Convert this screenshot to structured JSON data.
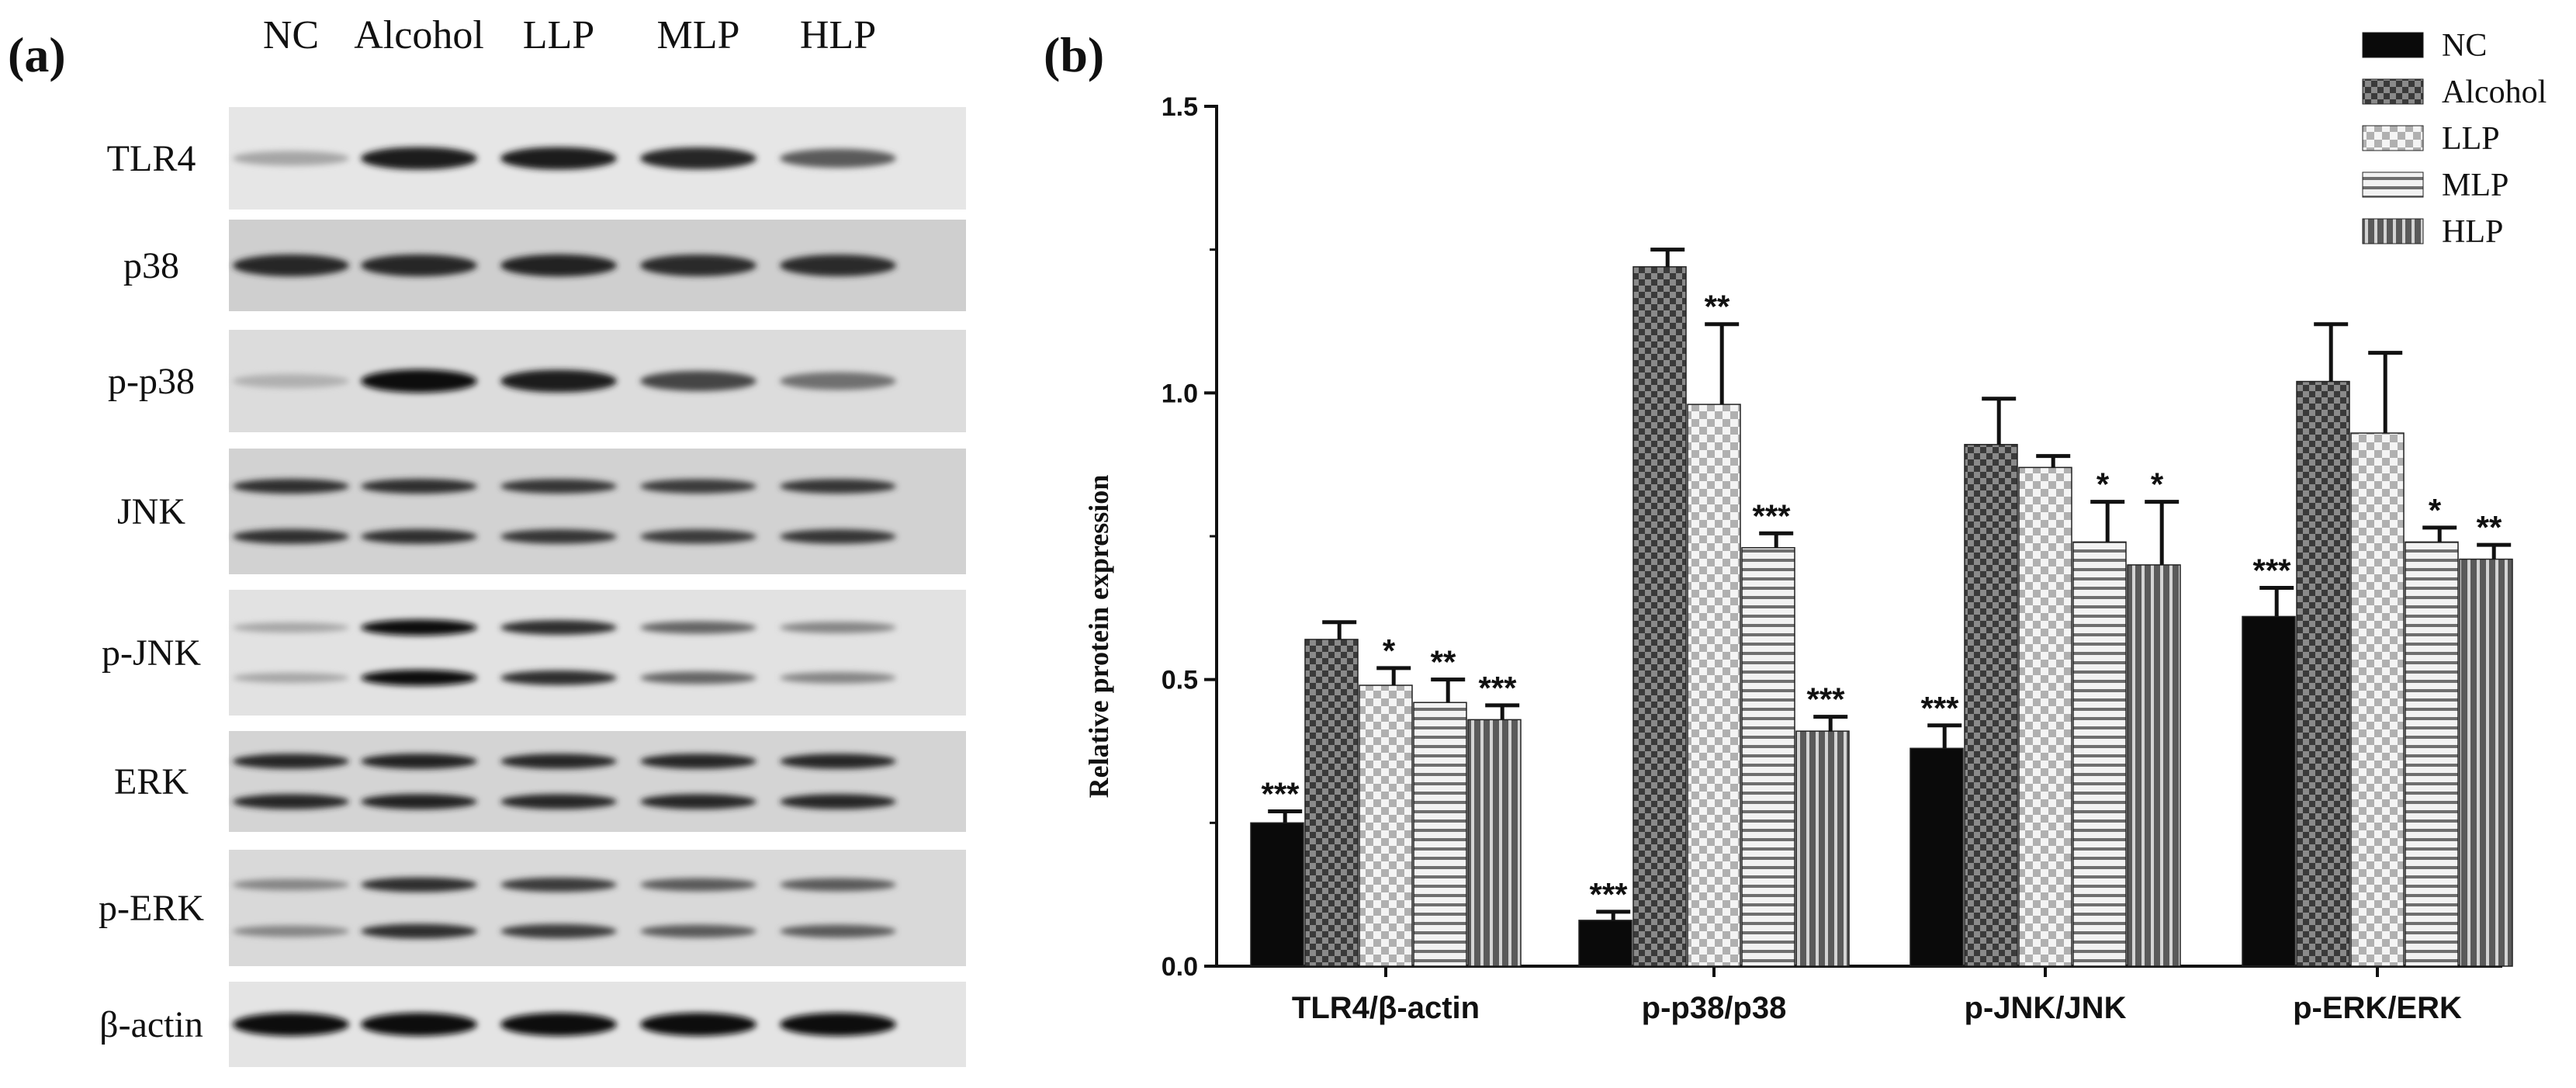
{
  "panel_a": {
    "label": "(a)",
    "lanes": [
      "NC",
      "Alcohol",
      "LLP",
      "MLP",
      "HLP"
    ],
    "rows": [
      {
        "label": "TLR4",
        "bands": 1,
        "intensity": [
          0.3,
          0.95,
          0.95,
          0.9,
          0.65
        ],
        "bg": "#e6e6e6"
      },
      {
        "label": "p38",
        "bands": 1,
        "intensity": [
          0.9,
          0.9,
          0.92,
          0.88,
          0.88
        ],
        "bg": "#cfcfcf"
      },
      {
        "label": "p-p38",
        "bands": 1,
        "intensity": [
          0.25,
          1.0,
          0.95,
          0.75,
          0.55
        ],
        "bg": "#dcdcdc"
      },
      {
        "label": "JNK",
        "bands": 2,
        "intensity": [
          0.85,
          0.85,
          0.82,
          0.8,
          0.82
        ],
        "bg": "#d2d2d2"
      },
      {
        "label": "p-JNK",
        "bands": 2,
        "intensity": [
          0.3,
          1.0,
          0.85,
          0.6,
          0.45
        ],
        "bg": "#e2e2e2"
      },
      {
        "label": "ERK",
        "bands": 2,
        "intensity": [
          0.9,
          0.92,
          0.9,
          0.9,
          0.9
        ],
        "bg": "#d4d4d4"
      },
      {
        "label": "p-ERK",
        "bands": 2,
        "intensity": [
          0.45,
          0.85,
          0.8,
          0.65,
          0.65
        ],
        "bg": "#d9d9d9"
      },
      {
        "label": "β-actin",
        "bands": 1,
        "intensity": [
          1.0,
          1.0,
          1.0,
          1.0,
          1.0
        ],
        "bg": "#e4e4e4"
      }
    ]
  },
  "chart_data": {
    "type": "bar",
    "panel_label": "(b)",
    "ylabel": "Relative protein  expression",
    "xlabel": "",
    "ylim": [
      0,
      1.5
    ],
    "yticks": [
      "0.0",
      "0.5",
      "1.0",
      "1.5"
    ],
    "categories": [
      "TLR4/β-actin",
      "p-p38/p38",
      "p-JNK/JNK",
      "p-ERK/ERK"
    ],
    "legend_position": "top-right",
    "series": [
      {
        "name": "NC",
        "pattern": "solid",
        "values": [
          0.25,
          0.08,
          0.38,
          0.61
        ],
        "errors": [
          0.02,
          0.015,
          0.04,
          0.05
        ],
        "sig": [
          "***",
          "***",
          "***",
          "***"
        ]
      },
      {
        "name": "Alcohol",
        "pattern": "dark-check",
        "values": [
          0.57,
          1.22,
          0.91,
          1.02
        ],
        "errors": [
          0.03,
          0.03,
          0.08,
          0.1
        ],
        "sig": [
          "",
          "",
          "",
          ""
        ]
      },
      {
        "name": "LLP",
        "pattern": "light-check",
        "values": [
          0.49,
          0.98,
          0.87,
          0.93
        ],
        "errors": [
          0.03,
          0.14,
          0.02,
          0.14
        ],
        "sig": [
          "*",
          "**",
          "",
          ""
        ]
      },
      {
        "name": "MLP",
        "pattern": "hlines",
        "values": [
          0.46,
          0.73,
          0.74,
          0.74
        ],
        "errors": [
          0.04,
          0.025,
          0.07,
          0.025
        ],
        "sig": [
          "**",
          "***",
          "*",
          "*"
        ]
      },
      {
        "name": "HLP",
        "pattern": "vlines",
        "values": [
          0.43,
          0.41,
          0.7,
          0.71
        ],
        "errors": [
          0.025,
          0.025,
          0.11,
          0.025
        ],
        "sig": [
          "***",
          "***",
          "*",
          "**"
        ]
      }
    ],
    "colors": {
      "solid": "#0a0a0a",
      "dark": "#505050",
      "light": "#bdbdbd",
      "lines": "#777777",
      "axis": "#111111"
    }
  }
}
